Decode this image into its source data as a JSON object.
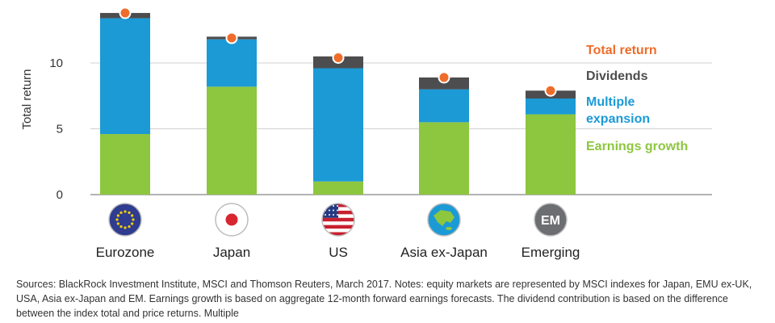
{
  "chart_data": {
    "type": "bar",
    "stacked": true,
    "ylabel": "Total return",
    "ylim": [
      0,
      14
    ],
    "yticks": [
      0,
      5,
      10
    ],
    "grid": true,
    "legend_position": "right",
    "categories": [
      "Eurozone",
      "Japan",
      "US",
      "Asia ex-Japan",
      "Emerging"
    ],
    "series": [
      {
        "name": "Earnings growth",
        "color": "#8dc63f",
        "values": [
          4.6,
          8.2,
          1.0,
          5.5,
          6.1
        ]
      },
      {
        "name": "Multiple expansion",
        "color": "#1b9ad6",
        "values": [
          8.8,
          3.6,
          8.6,
          2.5,
          1.2
        ]
      },
      {
        "name": "Dividends",
        "color": "#4d4d4f",
        "values": [
          0.4,
          0.2,
          0.9,
          0.9,
          0.6
        ]
      }
    ],
    "total_return": {
      "name": "Total return",
      "color": "#ef6c2a",
      "values": [
        13.8,
        11.9,
        10.4,
        8.9,
        7.9
      ]
    },
    "legend_labels": [
      "Total return",
      "Dividends",
      "Multiple\nexpansion",
      "Earnings growth"
    ],
    "category_icons": [
      "eu-flag-icon",
      "japan-flag-icon",
      "us-flag-icon",
      "asia-map-icon",
      "em-badge-icon"
    ],
    "em_badge_text": "EM"
  },
  "notes": "Sources: BlackRock Investment Institute, MSCI and Thomson Reuters, March 2017. Notes: equity markets are represented by MSCI indexes for Japan, EMU ex-UK, USA, Asia ex-Japan and EM. Earnings growth is based on aggregate 12-month forward earnings forecasts. The dividend contribution is based on the difference between the index total and price returns. Multiple"
}
